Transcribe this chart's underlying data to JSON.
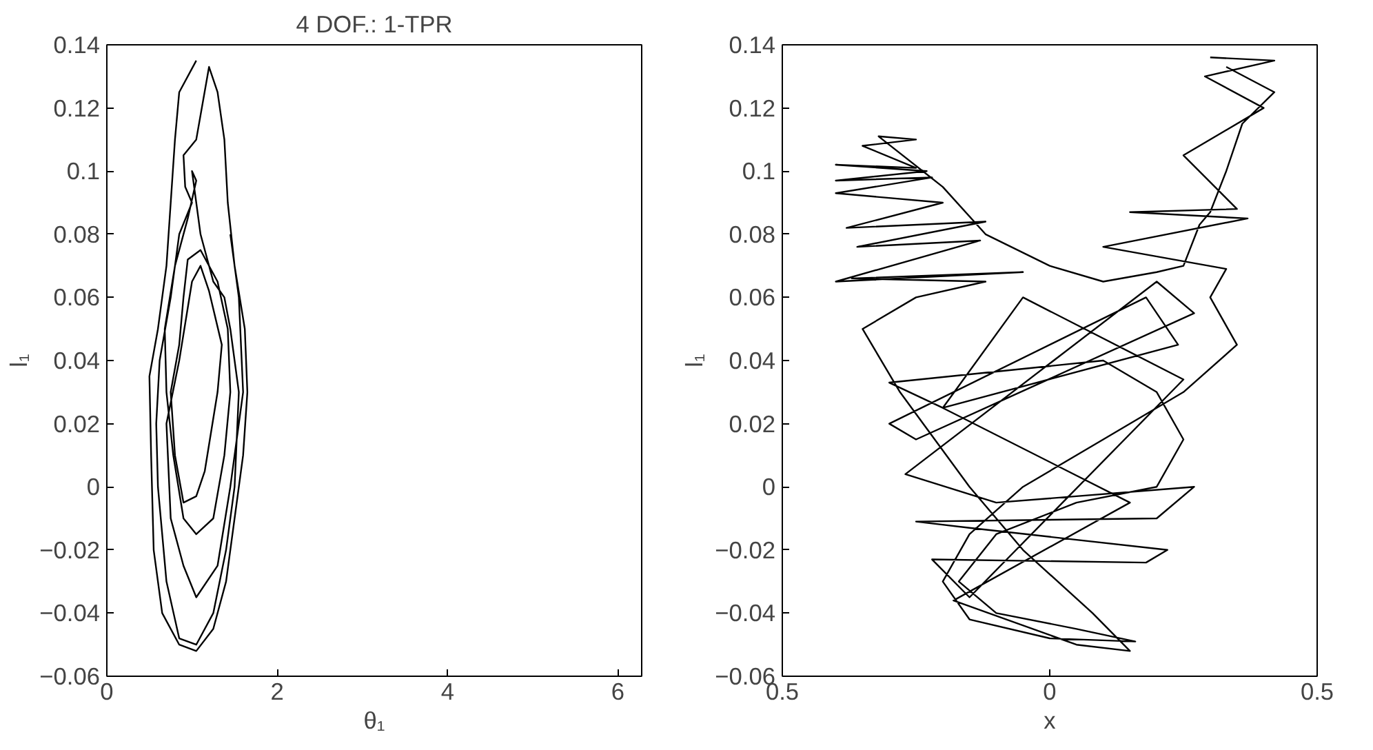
{
  "chart_data": [
    {
      "type": "line",
      "title": "4 DOF.: 1-TPR",
      "xlabel": "θ₁",
      "ylabel": "l₁",
      "xlim": [
        0,
        6.28
      ],
      "ylim": [
        -0.06,
        0.14
      ],
      "xticks": [
        0,
        2,
        4,
        6
      ],
      "yticks": [
        {
          "value": -0.06,
          "label": "−0.06"
        },
        {
          "value": -0.04,
          "label": "−0.04"
        },
        {
          "value": -0.02,
          "label": "−0.02"
        },
        0,
        0.02,
        0.04,
        0.06,
        0.08,
        0.1,
        0.12,
        0.14
      ],
      "series": [
        {
          "color": "#000000",
          "x": [
            1.05,
            0.85,
            0.8,
            0.75,
            0.7,
            0.6,
            0.5,
            0.52,
            0.55,
            0.65,
            0.85,
            1.05,
            1.25,
            1.4,
            1.5,
            1.6,
            1.65,
            1.62,
            1.5,
            1.42,
            1.38,
            1.3,
            1.2,
            1.05,
            0.9,
            0.92,
            1.0,
            0.85,
            0.75,
            0.62,
            0.58,
            0.6,
            0.7,
            0.85,
            1.05,
            1.25,
            1.4,
            1.5,
            1.55,
            1.45,
            1.38,
            1.25,
            1.1,
            1.0,
            1.05,
            0.95,
            0.8,
            0.68,
            0.7,
            0.78,
            0.9,
            1.05,
            1.25,
            1.38,
            1.45,
            1.42,
            1.3,
            1.1,
            0.95,
            0.9,
            0.85,
            0.75,
            0.8,
            0.9,
            1.05,
            1.15,
            1.3,
            1.35,
            1.2,
            1.1,
            1.0,
            0.85,
            0.7,
            0.75,
            0.9,
            1.05,
            1.3,
            1.45,
            1.6,
            1.55,
            1.45
          ],
          "values": [
            0.135,
            0.125,
            0.11,
            0.09,
            0.07,
            0.05,
            0.035,
            0.01,
            -0.02,
            -0.04,
            -0.05,
            -0.052,
            -0.045,
            -0.03,
            -0.01,
            0.01,
            0.03,
            0.05,
            0.07,
            0.09,
            0.11,
            0.125,
            0.133,
            0.11,
            0.105,
            0.095,
            0.09,
            0.08,
            0.06,
            0.04,
            0.02,
            0.0,
            -0.03,
            -0.048,
            -0.05,
            -0.04,
            -0.02,
            0.0,
            0.03,
            0.05,
            0.06,
            0.065,
            0.08,
            0.1,
            0.097,
            0.085,
            0.07,
            0.05,
            0.03,
            0.01,
            -0.01,
            -0.015,
            -0.01,
            0.01,
            0.03,
            0.05,
            0.065,
            0.075,
            0.072,
            0.06,
            0.045,
            0.03,
            0.01,
            -0.005,
            -0.003,
            0.005,
            0.03,
            0.045,
            0.062,
            0.07,
            0.065,
            0.04,
            0.02,
            -0.01,
            -0.025,
            -0.035,
            -0.025,
            0.0,
            0.03,
            0.06,
            0.08
          ]
        }
      ]
    },
    {
      "type": "line",
      "xlabel": "x",
      "ylabel": "l₁",
      "xlim": [
        -0.5,
        0.5
      ],
      "ylim": [
        -0.06,
        0.14
      ],
      "xticks": [
        {
          "value": -0.5,
          "label": "0.5"
        },
        0,
        0.5
      ],
      "yticks": [
        {
          "value": -0.06,
          "label": "−0.06"
        },
        {
          "value": -0.04,
          "label": "−0.04"
        },
        {
          "value": -0.02,
          "label": "−0.02"
        },
        0,
        0.02,
        0.04,
        0.06,
        0.08,
        0.1,
        0.12,
        0.14
      ],
      "series": [
        {
          "color": "#000000",
          "x": [
            0.3,
            0.42,
            0.29,
            0.4,
            0.25,
            0.35,
            0.15,
            0.37,
            0.1,
            0.33,
            0.3,
            0.35,
            0.25,
            0.1,
            -0.05,
            -0.15,
            -0.2,
            -0.15,
            0.0,
            0.16,
            0.05,
            -0.1,
            -0.17,
            -0.1,
            0.05,
            0.2,
            0.25,
            0.2,
            0.1,
            -0.3,
            -0.2,
            0.24,
            0.18,
            -0.3,
            -0.25,
            0.27,
            0.2,
            -0.27,
            -0.1,
            0.27,
            0.2,
            -0.25,
            -0.15,
            0.22,
            0.18,
            -0.22,
            -0.15,
            0.25,
            -0.05,
            -0.2,
            0.15,
            -0.18,
            0.05,
            0.15,
            0.08,
            -0.05,
            -0.15,
            -0.28,
            -0.35,
            -0.25,
            -0.12,
            -0.37,
            -0.05,
            -0.4,
            -0.13,
            -0.36,
            -0.12,
            -0.38,
            -0.2,
            -0.4,
            -0.22,
            -0.4,
            -0.23,
            -0.4,
            -0.25,
            -0.35,
            -0.25,
            -0.32,
            -0.2,
            -0.12,
            0.0,
            0.1,
            0.2,
            0.25,
            0.28,
            0.3,
            0.33,
            0.36,
            0.42,
            0.33
          ],
          "values": [
            0.136,
            0.135,
            0.13,
            0.12,
            0.105,
            0.088,
            0.087,
            0.085,
            0.076,
            0.069,
            0.06,
            0.045,
            0.03,
            0.015,
            0.0,
            -0.015,
            -0.03,
            -0.042,
            -0.048,
            -0.049,
            -0.045,
            -0.04,
            -0.03,
            -0.015,
            -0.005,
            0.0,
            0.015,
            0.03,
            0.04,
            0.033,
            0.025,
            0.045,
            0.06,
            0.02,
            0.015,
            0.055,
            0.065,
            0.004,
            -0.005,
            0.0,
            -0.01,
            -0.011,
            -0.013,
            -0.02,
            -0.024,
            -0.023,
            -0.035,
            0.034,
            0.06,
            0.025,
            -0.005,
            -0.036,
            -0.05,
            -0.052,
            -0.04,
            -0.02,
            0.0,
            0.03,
            0.05,
            0.06,
            0.065,
            0.066,
            0.068,
            0.065,
            0.078,
            0.076,
            0.084,
            0.082,
            0.09,
            0.093,
            0.098,
            0.097,
            0.1,
            0.102,
            0.101,
            0.108,
            0.11,
            0.111,
            0.095,
            0.08,
            0.07,
            0.065,
            0.068,
            0.07,
            0.083,
            0.087,
            0.1,
            0.115,
            0.125,
            0.133
          ]
        }
      ]
    }
  ]
}
